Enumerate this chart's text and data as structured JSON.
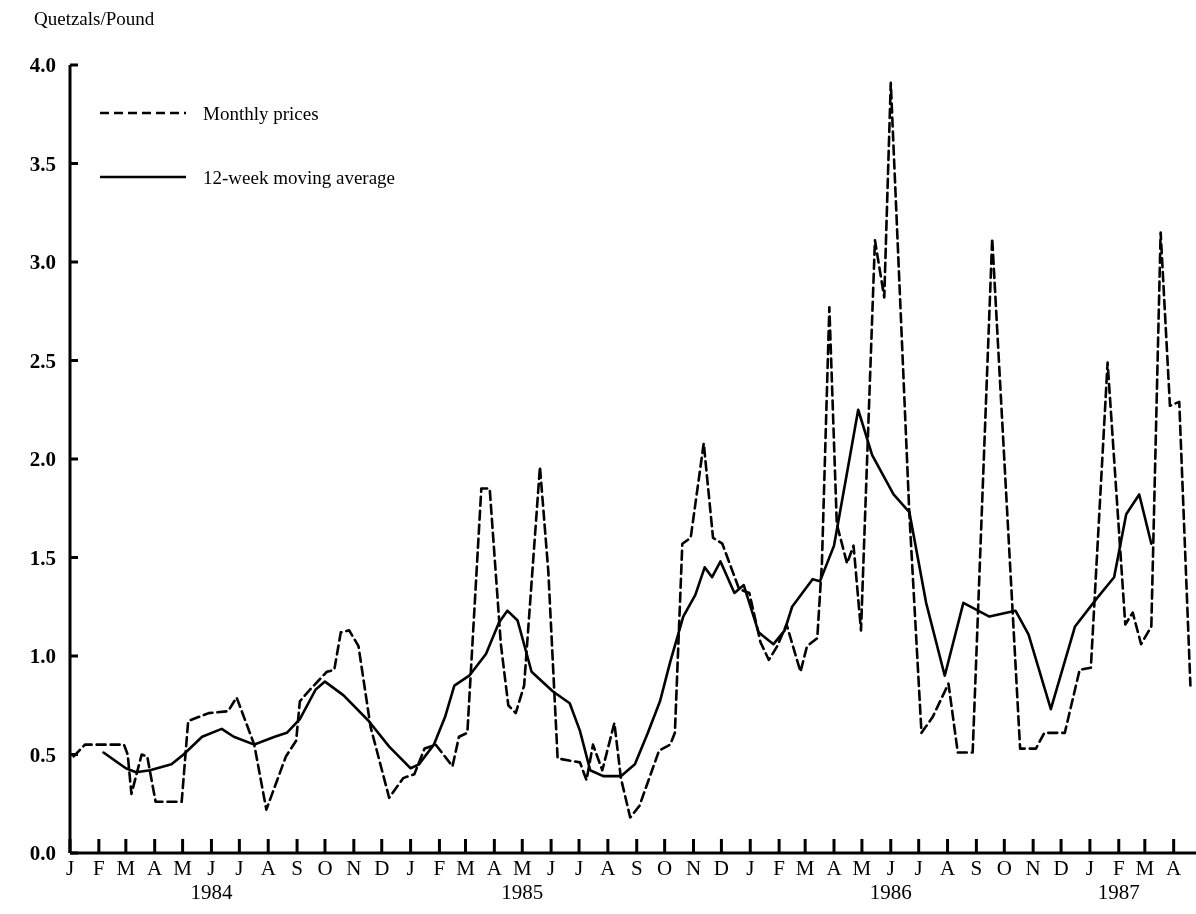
{
  "chart_data": {
    "type": "line",
    "ylabel": "Quetzals/Pound",
    "xlim": [
      "1984-01-01",
      "1987-04-25"
    ],
    "ylim": [
      0,
      4
    ],
    "xticks": [
      {
        "value": "1984-01-01",
        "label": "J"
      },
      {
        "value": "1984-02-01",
        "label": "F"
      },
      {
        "value": "1984-03-01",
        "label": "M"
      },
      {
        "value": "1984-04-01",
        "label": "A"
      },
      {
        "value": "1984-05-01",
        "label": "M"
      },
      {
        "value": "1984-06-01",
        "label": "J\n1984"
      },
      {
        "value": "1984-07-01",
        "label": "J"
      },
      {
        "value": "1984-08-01",
        "label": "A"
      },
      {
        "value": "1984-09-01",
        "label": "S"
      },
      {
        "value": "1984-10-01",
        "label": "O"
      },
      {
        "value": "1984-11-01",
        "label": "N"
      },
      {
        "value": "1984-12-01",
        "label": "D"
      },
      {
        "value": "1985-01-01",
        "label": "J"
      },
      {
        "value": "1985-02-01",
        "label": "F"
      },
      {
        "value": "1985-03-01",
        "label": "M"
      },
      {
        "value": "1985-04-01",
        "label": "A"
      },
      {
        "value": "1985-05-01",
        "label": "M\n1985"
      },
      {
        "value": "1985-06-01",
        "label": "J"
      },
      {
        "value": "1985-07-01",
        "label": "J"
      },
      {
        "value": "1985-08-01",
        "label": "A"
      },
      {
        "value": "1985-09-01",
        "label": "S"
      },
      {
        "value": "1985-10-01",
        "label": "O"
      },
      {
        "value": "1985-11-01",
        "label": "N"
      },
      {
        "value": "1985-12-01",
        "label": "D"
      },
      {
        "value": "1986-01-01",
        "label": "J"
      },
      {
        "value": "1986-02-01",
        "label": "F"
      },
      {
        "value": "1986-03-01",
        "label": "M"
      },
      {
        "value": "1986-04-01",
        "label": "A"
      },
      {
        "value": "1986-05-01",
        "label": "M"
      },
      {
        "value": "1986-06-01",
        "label": "J\n1986"
      },
      {
        "value": "1986-07-01",
        "label": "J"
      },
      {
        "value": "1986-08-01",
        "label": "A"
      },
      {
        "value": "1986-09-01",
        "label": "S"
      },
      {
        "value": "1986-10-01",
        "label": "O"
      },
      {
        "value": "1986-11-01",
        "label": "N"
      },
      {
        "value": "1986-12-01",
        "label": "D"
      },
      {
        "value": "1987-01-01",
        "label": "J"
      },
      {
        "value": "1987-02-01",
        "label": "F\n1987"
      },
      {
        "value": "1987-03-01",
        "label": "M"
      },
      {
        "value": "1987-04-01",
        "label": "A"
      }
    ],
    "yticks": [
      {
        "value": 0,
        "label": "0.0"
      },
      {
        "value": 0.5,
        "label": "0.5"
      },
      {
        "value": 1,
        "label": "1.0"
      },
      {
        "value": 1.5,
        "label": "1.5"
      },
      {
        "value": 2,
        "label": "2.0"
      },
      {
        "value": 2.5,
        "label": "2.5"
      },
      {
        "value": 3,
        "label": "3.0"
      },
      {
        "value": 3.5,
        "label": "3.5"
      },
      {
        "value": 4,
        "label": "4.0"
      }
    ],
    "grid": false,
    "legend": "top left",
    "marker": "none",
    "series": [
      {
        "name": "Monthly prices",
        "color": "#000000",
        "line_style": "dashed",
        "x": [
          "1984-01-05",
          "1984-01-17",
          "1984-02-28",
          "1984-03-03",
          "1984-03-07",
          "1984-03-18",
          "1984-03-24",
          "1984-04-02",
          "1984-04-30",
          "1984-05-07",
          "1984-05-29",
          "1984-06-19",
          "1984-06-28",
          "1984-07-17",
          "1984-07-30",
          "1984-08-20",
          "1984-08-31",
          "1984-09-04",
          "1984-09-15",
          "1984-10-03",
          "1984-10-11",
          "1984-10-18",
          "1984-10-27",
          "1984-11-06",
          "1984-11-19",
          "1984-12-09",
          "1984-12-24",
          "1985-01-05",
          "1985-01-16",
          "1985-01-28",
          "1985-02-15",
          "1985-02-22",
          "1985-03-03",
          "1985-03-18",
          "1985-03-27",
          "1985-04-08",
          "1985-04-16",
          "1985-04-24",
          "1985-05-03",
          "1985-05-20",
          "1985-05-29",
          "1985-06-08",
          "1985-07-02",
          "1985-07-09",
          "1985-07-16",
          "1985-07-26",
          "1985-08-08",
          "1985-08-15",
          "1985-08-25",
          "1985-09-04",
          "1985-09-25",
          "1985-10-07",
          "1985-10-12",
          "1985-10-20",
          "1985-10-29",
          "1985-11-12",
          "1985-11-22",
          "1985-12-02",
          "1985-12-20",
          "1985-12-31",
          "1986-01-12",
          "1986-01-21",
          "1986-01-30",
          "1986-02-09",
          "1986-02-24",
          "1986-03-03",
          "1986-03-14",
          "1986-03-19",
          "1986-03-27",
          "1986-04-04",
          "1986-04-15",
          "1986-04-22",
          "1986-04-30",
          "1986-05-15",
          "1986-05-25",
          "1986-06-01",
          "1986-06-21",
          "1986-07-04",
          "1986-07-16",
          "1986-08-02",
          "1986-08-12",
          "1986-08-28",
          "1986-09-18",
          "1986-10-18",
          "1986-11-04",
          "1986-11-13",
          "1986-12-05",
          "1986-12-21",
          "1987-01-02",
          "1987-01-20",
          "1987-02-08",
          "1987-02-16",
          "1987-02-25",
          "1987-03-08",
          "1987-03-18",
          "1987-03-28",
          "1987-04-07",
          "1987-04-19"
        ],
        "values": [
          0.49,
          0.55,
          0.55,
          0.5,
          0.3,
          0.5,
          0.49,
          0.26,
          0.26,
          0.67,
          0.71,
          0.72,
          0.79,
          0.55,
          0.22,
          0.49,
          0.57,
          0.77,
          0.83,
          0.92,
          0.93,
          1.12,
          1.13,
          1.05,
          0.64,
          0.28,
          0.38,
          0.4,
          0.53,
          0.55,
          0.44,
          0.59,
          0.61,
          1.85,
          1.85,
          1.06,
          0.75,
          0.71,
          0.85,
          1.96,
          1.43,
          0.48,
          0.46,
          0.37,
          0.55,
          0.42,
          0.66,
          0.38,
          0.18,
          0.24,
          0.52,
          0.55,
          0.61,
          1.57,
          1.6,
          2.08,
          1.6,
          1.57,
          1.34,
          1.32,
          1.07,
          0.98,
          1.05,
          1.16,
          0.92,
          1.05,
          1.09,
          1.47,
          2.77,
          1.67,
          1.47,
          1.56,
          1.13,
          3.11,
          2.82,
          3.91,
          1.72,
          0.61,
          0.69,
          0.86,
          0.51,
          0.51,
          3.12,
          0.53,
          0.53,
          0.61,
          0.61,
          0.93,
          0.94,
          2.49,
          1.16,
          1.22,
          1.06,
          1.15,
          3.15,
          2.27,
          2.29,
          0.85
        ]
      },
      {
        "name": "12-week moving average",
        "color": "#000000",
        "line_style": "solid",
        "x": [
          "1984-02-06",
          "1984-03-01",
          "1984-03-12",
          "1984-03-27",
          "1984-04-19",
          "1984-05-02",
          "1984-05-22",
          "1984-06-12",
          "1984-06-25",
          "1984-07-17",
          "1984-08-08",
          "1984-08-21",
          "1984-09-04",
          "1984-09-21",
          "1984-10-01",
          "1984-10-21",
          "1984-11-17",
          "1984-12-09",
          "1985-01-01",
          "1985-01-10",
          "1985-01-26",
          "1985-02-07",
          "1985-02-17",
          "1985-03-05",
          "1985-03-23",
          "1985-04-06",
          "1985-04-15",
          "1985-04-26",
          "1985-05-11",
          "1985-06-03",
          "1985-06-21",
          "1985-07-02",
          "1985-07-13",
          "1985-07-27",
          "1985-08-15",
          "1985-08-30",
          "1985-09-13",
          "1985-09-26",
          "1985-10-07",
          "1985-10-21",
          "1985-11-03",
          "1985-11-13",
          "1985-11-21",
          "1985-11-30",
          "1985-12-15",
          "1985-12-25",
          "1986-01-10",
          "1986-01-26",
          "1986-02-07",
          "1986-02-15",
          "1986-03-09",
          "1986-03-17",
          "1986-04-01",
          "1986-04-15",
          "1986-04-27",
          "1986-05-12",
          "1986-06-04",
          "1986-06-21",
          "1986-07-09",
          "1986-07-29",
          "1986-08-18",
          "1986-09-15",
          "1986-10-13",
          "1986-10-27",
          "1986-11-20",
          "1986-12-16",
          "1987-01-08",
          "1987-01-27",
          "1987-02-09",
          "1987-02-23",
          "1987-03-08"
        ],
        "values": [
          0.51,
          0.43,
          0.41,
          0.42,
          0.45,
          0.5,
          0.59,
          0.63,
          0.59,
          0.55,
          0.59,
          0.61,
          0.68,
          0.83,
          0.87,
          0.8,
          0.67,
          0.54,
          0.43,
          0.45,
          0.55,
          0.69,
          0.85,
          0.9,
          1.01,
          1.17,
          1.23,
          1.18,
          0.92,
          0.82,
          0.76,
          0.62,
          0.42,
          0.39,
          0.39,
          0.45,
          0.61,
          0.77,
          0.97,
          1.2,
          1.31,
          1.45,
          1.4,
          1.48,
          1.32,
          1.36,
          1.12,
          1.06,
          1.13,
          1.25,
          1.39,
          1.38,
          1.56,
          1.93,
          2.25,
          2.02,
          1.82,
          1.73,
          1.27,
          0.9,
          1.27,
          1.2,
          1.23,
          1.11,
          0.73,
          1.15,
          1.29,
          1.4,
          1.72,
          1.82,
          1.57
        ]
      }
    ]
  }
}
